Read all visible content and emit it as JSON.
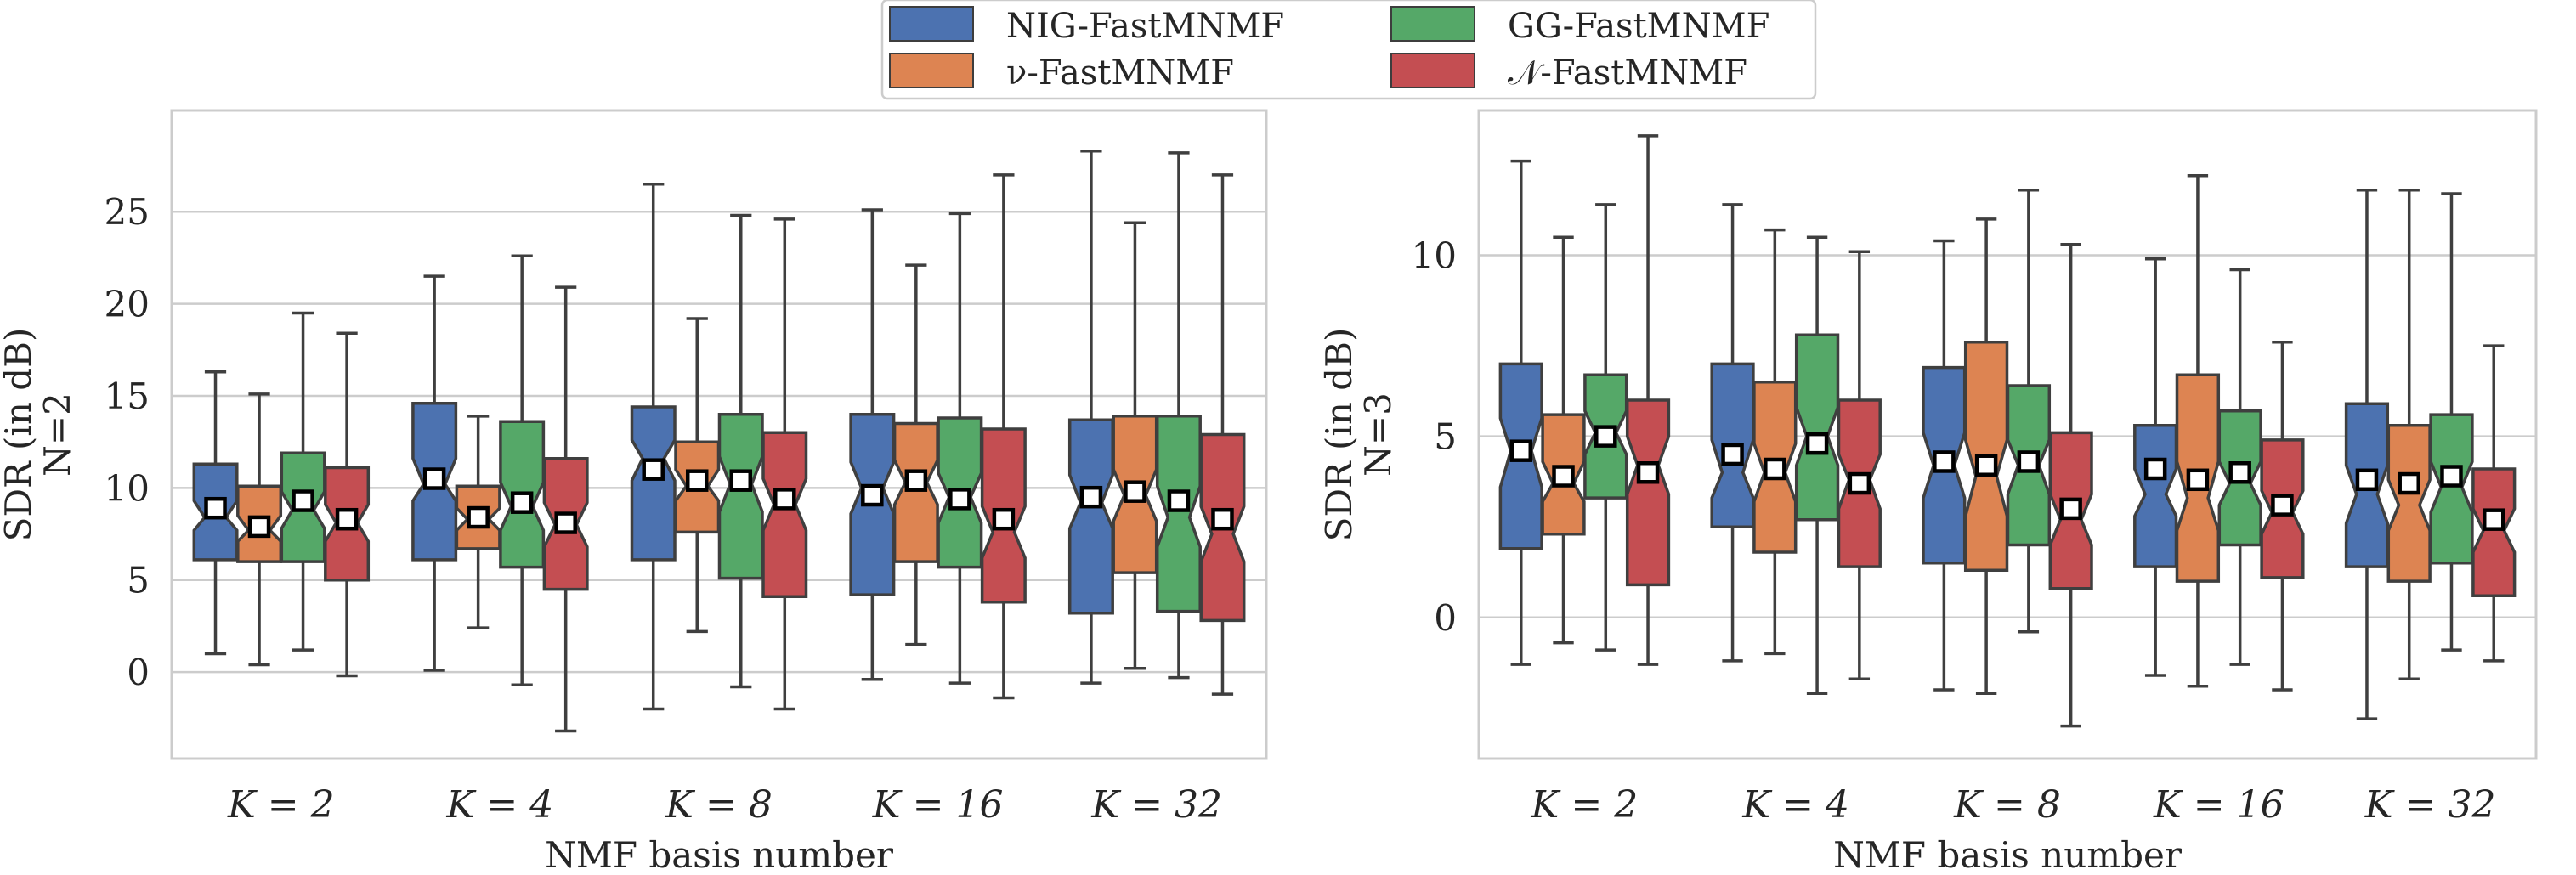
{
  "legend": {
    "entries": [
      {
        "name": "NIG-FastMNMF",
        "color": "#4c72b0"
      },
      {
        "name": "GG-FastMNMF",
        "color": "#55a868"
      },
      {
        "name": "ν-FastMNMF",
        "color": "#dd8452"
      },
      {
        "name": "𝒩-FastMNMF",
        "color": "#c44e52"
      }
    ]
  },
  "chart_data": [
    {
      "type": "box",
      "xlabel": "NMF basis number",
      "ylabel": "SDR (in dB)",
      "ylabel2": "N=2",
      "ylim": [
        -4.7,
        30.5
      ],
      "yticks": [
        0,
        5,
        10,
        15,
        20,
        25
      ],
      "grid": "horizontal",
      "categories": [
        "K = 2",
        "K = 4",
        "K = 8",
        "K = 16",
        "K = 32"
      ],
      "series": [
        {
          "name": "NIG-FastMNMF",
          "color": "#4c72b0",
          "boxes": [
            {
              "whislo": 1.0,
              "q1": 6.1,
              "med": 8.4,
              "q3": 11.3,
              "whishi": 16.3,
              "notch_lo": 7.7,
              "notch_hi": 9.3,
              "mean": 8.9
            },
            {
              "whislo": 0.1,
              "q1": 6.1,
              "med": 10.2,
              "q3": 14.6,
              "whishi": 21.5,
              "notch_lo": 9.3,
              "notch_hi": 11.6,
              "mean": 10.5
            },
            {
              "whislo": -2.0,
              "q1": 6.1,
              "med": 11.6,
              "q3": 14.4,
              "whishi": 26.5,
              "notch_lo": 10.4,
              "notch_hi": 12.6,
              "mean": 11.0
            },
            {
              "whislo": -0.4,
              "q1": 4.2,
              "med": 10.0,
              "q3": 14.0,
              "whishi": 25.1,
              "notch_lo": 8.6,
              "notch_hi": 11.4,
              "mean": 9.6
            },
            {
              "whislo": -0.6,
              "q1": 3.2,
              "med": 9.2,
              "q3": 13.7,
              "whishi": 28.3,
              "notch_lo": 7.8,
              "notch_hi": 10.7,
              "mean": 9.5
            }
          ]
        },
        {
          "name": "ν-FastMNMF",
          "color": "#dd8452",
          "boxes": [
            {
              "whislo": 0.4,
              "q1": 6.0,
              "med": 7.7,
              "q3": 10.1,
              "whishi": 15.1,
              "notch_lo": 7.1,
              "notch_hi": 8.5,
              "mean": 7.9
            },
            {
              "whislo": 2.4,
              "q1": 6.7,
              "med": 8.3,
              "q3": 10.1,
              "whishi": 13.9,
              "notch_lo": 7.7,
              "notch_hi": 8.9,
              "mean": 8.4
            },
            {
              "whislo": 2.2,
              "q1": 7.6,
              "med": 10.1,
              "q3": 12.5,
              "whishi": 19.2,
              "notch_lo": 9.3,
              "notch_hi": 11.0,
              "mean": 10.4
            },
            {
              "whislo": 1.5,
              "q1": 6.0,
              "med": 10.3,
              "q3": 13.5,
              "whishi": 22.1,
              "notch_lo": 9.1,
              "notch_hi": 11.5,
              "mean": 10.4
            },
            {
              "whislo": 0.2,
              "q1": 5.4,
              "med": 9.6,
              "q3": 13.9,
              "whishi": 24.4,
              "notch_lo": 8.2,
              "notch_hi": 11.0,
              "mean": 9.8
            }
          ]
        },
        {
          "name": "GG-FastMNMF",
          "color": "#55a868",
          "boxes": [
            {
              "whislo": 1.2,
              "q1": 6.0,
              "med": 8.8,
              "q3": 11.9,
              "whishi": 19.5,
              "notch_lo": 7.8,
              "notch_hi": 9.8,
              "mean": 9.3
            },
            {
              "whislo": -0.7,
              "q1": 5.7,
              "med": 9.0,
              "q3": 13.6,
              "whishi": 22.6,
              "notch_lo": 7.7,
              "notch_hi": 10.3,
              "mean": 9.2
            },
            {
              "whislo": -0.8,
              "q1": 5.1,
              "med": 10.2,
              "q3": 14.0,
              "whishi": 24.8,
              "notch_lo": 8.7,
              "notch_hi": 11.7,
              "mean": 10.4
            },
            {
              "whislo": -0.6,
              "q1": 5.7,
              "med": 9.5,
              "q3": 13.8,
              "whishi": 24.9,
              "notch_lo": 8.1,
              "notch_hi": 10.8,
              "mean": 9.4
            },
            {
              "whislo": -0.3,
              "q1": 3.3,
              "med": 8.4,
              "q3": 13.9,
              "whishi": 28.2,
              "notch_lo": 6.8,
              "notch_hi": 10.1,
              "mean": 9.3
            }
          ]
        },
        {
          "name": "𝒩-FastMNMF",
          "color": "#c44e52",
          "boxes": [
            {
              "whislo": -0.2,
              "q1": 5.0,
              "med": 8.1,
              "q3": 11.1,
              "whishi": 18.4,
              "notch_lo": 7.1,
              "notch_hi": 9.1,
              "mean": 8.3
            },
            {
              "whislo": -3.2,
              "q1": 4.5,
              "med": 8.0,
              "q3": 11.6,
              "whishi": 20.9,
              "notch_lo": 6.8,
              "notch_hi": 9.2,
              "mean": 8.1
            },
            {
              "whislo": -2.0,
              "q1": 4.1,
              "med": 9.1,
              "q3": 13.0,
              "whishi": 24.6,
              "notch_lo": 7.7,
              "notch_hi": 10.5,
              "mean": 9.4
            },
            {
              "whislo": -1.4,
              "q1": 3.8,
              "med": 7.6,
              "q3": 13.2,
              "whishi": 27.0,
              "notch_lo": 6.2,
              "notch_hi": 9.0,
              "mean": 8.3
            },
            {
              "whislo": -1.2,
              "q1": 2.8,
              "med": 7.5,
              "q3": 12.9,
              "whishi": 27.0,
              "notch_lo": 6.0,
              "notch_hi": 9.0,
              "mean": 8.3
            }
          ]
        }
      ]
    },
    {
      "type": "box",
      "xlabel": "NMF basis number",
      "ylabel": "SDR (in dB)",
      "ylabel2": "N=3",
      "ylim": [
        -3.9,
        14.0
      ],
      "yticks": [
        0,
        5,
        10
      ],
      "grid": "horizontal",
      "categories": [
        "K = 2",
        "K = 4",
        "K = 8",
        "K = 16",
        "K = 32"
      ],
      "series": [
        {
          "name": "NIG-FastMNMF",
          "color": "#4c72b0",
          "boxes": [
            {
              "whislo": -1.3,
              "q1": 1.9,
              "med": 4.6,
              "q3": 7.0,
              "whishi": 12.6,
              "notch_lo": 3.6,
              "notch_hi": 5.5,
              "mean": 4.6
            },
            {
              "whislo": -1.2,
              "q1": 2.5,
              "med": 4.0,
              "q3": 7.0,
              "whishi": 11.4,
              "notch_lo": 3.3,
              "notch_hi": 4.9,
              "mean": 4.5
            },
            {
              "whislo": -2.0,
              "q1": 1.5,
              "med": 4.2,
              "q3": 6.9,
              "whishi": 10.4,
              "notch_lo": 3.3,
              "notch_hi": 5.1,
              "mean": 4.3
            },
            {
              "whislo": -1.6,
              "q1": 1.4,
              "med": 3.4,
              "q3": 5.3,
              "whishi": 9.9,
              "notch_lo": 2.8,
              "notch_hi": 4.1,
              "mean": 4.1
            },
            {
              "whislo": -2.8,
              "q1": 1.4,
              "med": 3.4,
              "q3": 5.9,
              "whishi": 11.8,
              "notch_lo": 2.6,
              "notch_hi": 4.2,
              "mean": 3.8
            }
          ]
        },
        {
          "name": "ν-FastMNMF",
          "color": "#dd8452",
          "boxes": [
            {
              "whislo": -0.7,
              "q1": 2.3,
              "med": 3.7,
              "q3": 5.6,
              "whishi": 10.5,
              "notch_lo": 3.2,
              "notch_hi": 4.3,
              "mean": 3.9
            },
            {
              "whislo": -1.0,
              "q1": 1.8,
              "med": 4.0,
              "q3": 6.5,
              "whishi": 10.7,
              "notch_lo": 3.2,
              "notch_hi": 4.8,
              "mean": 4.1
            },
            {
              "whislo": -2.1,
              "q1": 1.3,
              "med": 3.9,
              "q3": 7.6,
              "whishi": 11.0,
              "notch_lo": 2.8,
              "notch_hi": 4.9,
              "mean": 4.2
            },
            {
              "whislo": -1.9,
              "q1": 1.0,
              "med": 3.3,
              "q3": 6.7,
              "whishi": 12.2,
              "notch_lo": 2.4,
              "notch_hi": 4.3,
              "mean": 3.8
            },
            {
              "whislo": -1.7,
              "q1": 1.0,
              "med": 3.1,
              "q3": 5.3,
              "whishi": 11.8,
              "notch_lo": 2.4,
              "notch_hi": 3.8,
              "mean": 3.7
            }
          ]
        },
        {
          "name": "GG-FastMNMF",
          "color": "#55a868",
          "boxes": [
            {
              "whislo": -0.9,
              "q1": 3.3,
              "med": 5.1,
              "q3": 6.7,
              "whishi": 11.4,
              "notch_lo": 4.5,
              "notch_hi": 5.7,
              "mean": 5.0
            },
            {
              "whislo": -2.1,
              "q1": 2.7,
              "med": 5.0,
              "q3": 7.8,
              "whishi": 10.5,
              "notch_lo": 4.2,
              "notch_hi": 5.8,
              "mean": 4.8
            },
            {
              "whislo": -0.4,
              "q1": 2.0,
              "med": 4.2,
              "q3": 6.4,
              "whishi": 11.8,
              "notch_lo": 3.4,
              "notch_hi": 4.9,
              "mean": 4.3
            },
            {
              "whislo": -1.3,
              "q1": 2.0,
              "med": 3.7,
              "q3": 5.7,
              "whishi": 9.6,
              "notch_lo": 3.1,
              "notch_hi": 4.3,
              "mean": 4.0
            },
            {
              "whislo": -0.9,
              "q1": 1.5,
              "med": 3.6,
              "q3": 5.6,
              "whishi": 11.7,
              "notch_lo": 2.9,
              "notch_hi": 4.3,
              "mean": 3.9
            }
          ]
        },
        {
          "name": "𝒩-FastMNMF",
          "color": "#c44e52",
          "boxes": [
            {
              "whislo": -1.3,
              "q1": 0.9,
              "med": 4.2,
              "q3": 6.0,
              "whishi": 13.3,
              "notch_lo": 3.4,
              "notch_hi": 5.0,
              "mean": 4.0
            },
            {
              "whislo": -1.7,
              "q1": 1.4,
              "med": 3.8,
              "q3": 6.0,
              "whishi": 10.1,
              "notch_lo": 3.0,
              "notch_hi": 4.5,
              "mean": 3.7
            },
            {
              "whislo": -3.0,
              "q1": 0.8,
              "med": 2.7,
              "q3": 5.1,
              "whishi": 10.3,
              "notch_lo": 2.0,
              "notch_hi": 3.4,
              "mean": 3.0
            },
            {
              "whislo": -2.0,
              "q1": 1.1,
              "med": 2.9,
              "q3": 4.9,
              "whishi": 7.6,
              "notch_lo": 2.3,
              "notch_hi": 3.5,
              "mean": 3.1
            },
            {
              "whislo": -1.2,
              "q1": 0.6,
              "med": 2.4,
              "q3": 4.1,
              "whishi": 7.5,
              "notch_lo": 1.8,
              "notch_hi": 3.0,
              "mean": 2.7
            }
          ]
        }
      ]
    }
  ]
}
